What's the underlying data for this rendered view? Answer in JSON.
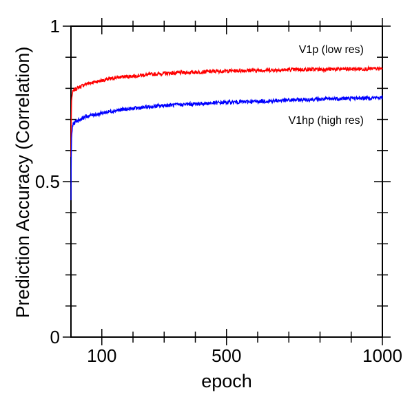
{
  "chart_data": {
    "type": "line",
    "xlabel": "epoch",
    "ylabel": "Prediction Accuracy (Correlation)",
    "xlim": [
      1,
      1000
    ],
    "ylim": [
      0,
      1
    ],
    "x_ticks": [
      100,
      500,
      1000
    ],
    "y_ticks": [
      0,
      0.5,
      1
    ],
    "y_tick_labels": [
      "0",
      "0.5",
      "1"
    ],
    "grid": false,
    "series": [
      {
        "name": "V1p (low res)",
        "color": "#ff0000",
        "x": [
          1,
          2,
          3,
          5,
          8,
          12,
          20,
          30,
          50,
          75,
          100,
          150,
          200,
          300,
          400,
          500,
          600,
          700,
          800,
          900,
          1000
        ],
        "values": [
          0.58,
          0.7,
          0.76,
          0.78,
          0.79,
          0.795,
          0.8,
          0.805,
          0.815,
          0.82,
          0.825,
          0.835,
          0.84,
          0.848,
          0.852,
          0.856,
          0.858,
          0.86,
          0.861,
          0.862,
          0.863
        ]
      },
      {
        "name": "V1hp (high res)",
        "color": "#0000ff",
        "x": [
          1,
          2,
          3,
          5,
          8,
          12,
          20,
          30,
          50,
          75,
          100,
          150,
          200,
          300,
          400,
          500,
          600,
          700,
          800,
          900,
          1000
        ],
        "values": [
          0.44,
          0.58,
          0.64,
          0.67,
          0.685,
          0.69,
          0.695,
          0.7,
          0.71,
          0.715,
          0.72,
          0.73,
          0.735,
          0.745,
          0.75,
          0.755,
          0.758,
          0.762,
          0.765,
          0.768,
          0.77
        ]
      }
    ]
  }
}
